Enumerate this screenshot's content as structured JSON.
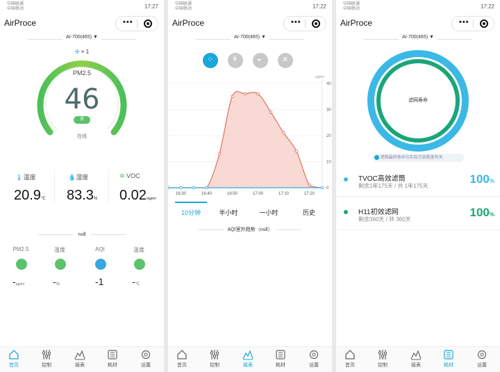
{
  "status": {
    "carrier1": "中国联通",
    "carrier2": "中国移动",
    "times": [
      "17:27",
      "17:22",
      "17:22"
    ]
  },
  "app": {
    "title": "AirProce",
    "device": "AI-700(465)",
    "menu_dots": "•••"
  },
  "home": {
    "fan_label": "× 1",
    "gauge_label": "PM2.5",
    "gauge_value": "46",
    "gauge_badge": "良",
    "gauge_status": "在线",
    "sensors": [
      {
        "label": "温度",
        "value": "20.9",
        "unit": "℃"
      },
      {
        "label": "湿度",
        "value": "83.3",
        "unit": "%"
      },
      {
        "label": "VOC",
        "value": "0.02",
        "unit": "mg/m³"
      }
    ],
    "outdoor_title": "null",
    "outdoor": [
      {
        "label": "PM2.5",
        "value": "-",
        "unit": "ug/m³"
      },
      {
        "label": "湿度",
        "value": "-",
        "unit": "%"
      },
      {
        "label": "AQI",
        "value": "-1",
        "unit": ""
      },
      {
        "label": "温度",
        "value": "-",
        "unit": "℃"
      }
    ]
  },
  "tabs": [
    "首页",
    "控制",
    "报表",
    "耗材",
    "设置"
  ],
  "report": {
    "unit_label": "μg/m³",
    "range_tabs": [
      "10分钟",
      "半小时",
      "一小时",
      "历史"
    ],
    "footer": "AQI室外趋势（null）",
    "chart_data": {
      "type": "area",
      "x": [
        "16:25",
        "16:30",
        "16:35",
        "16:40",
        "16:45",
        "16:50",
        "16:55",
        "17:00",
        "17:05",
        "17:10",
        "17:15",
        "17:20",
        "17:25"
      ],
      "y": [
        0,
        0,
        0,
        0,
        13,
        35,
        36,
        36,
        29,
        21,
        14,
        1,
        0
      ],
      "xticks": [
        "16:30",
        "16:40",
        "16:50",
        "17:00",
        "17:10",
        "17:20"
      ],
      "yticks": [
        "0",
        "10",
        "20",
        "30",
        "40"
      ],
      "ylim": [
        0,
        40
      ],
      "color": "#e07060",
      "fill": "#f6cfc8"
    }
  },
  "filters": {
    "ring_label": "滤网寿命",
    "tip": "滤网最终寿命与实际污染程度有关",
    "items": [
      {
        "name": "TVOC高效滤筒",
        "detail": "剩余1年175天 / 共 1年175天",
        "percent": "100",
        "color": "#3bb8e6"
      },
      {
        "name": "H11初效滤网",
        "detail": "剩余360天 / 共 360天",
        "percent": "100",
        "color": "#1aa57a"
      }
    ],
    "percent_unit": "%"
  },
  "colors": {
    "accent": "#19a7d8",
    "green": "#5cc16b",
    "teal": "#1aa57a"
  }
}
